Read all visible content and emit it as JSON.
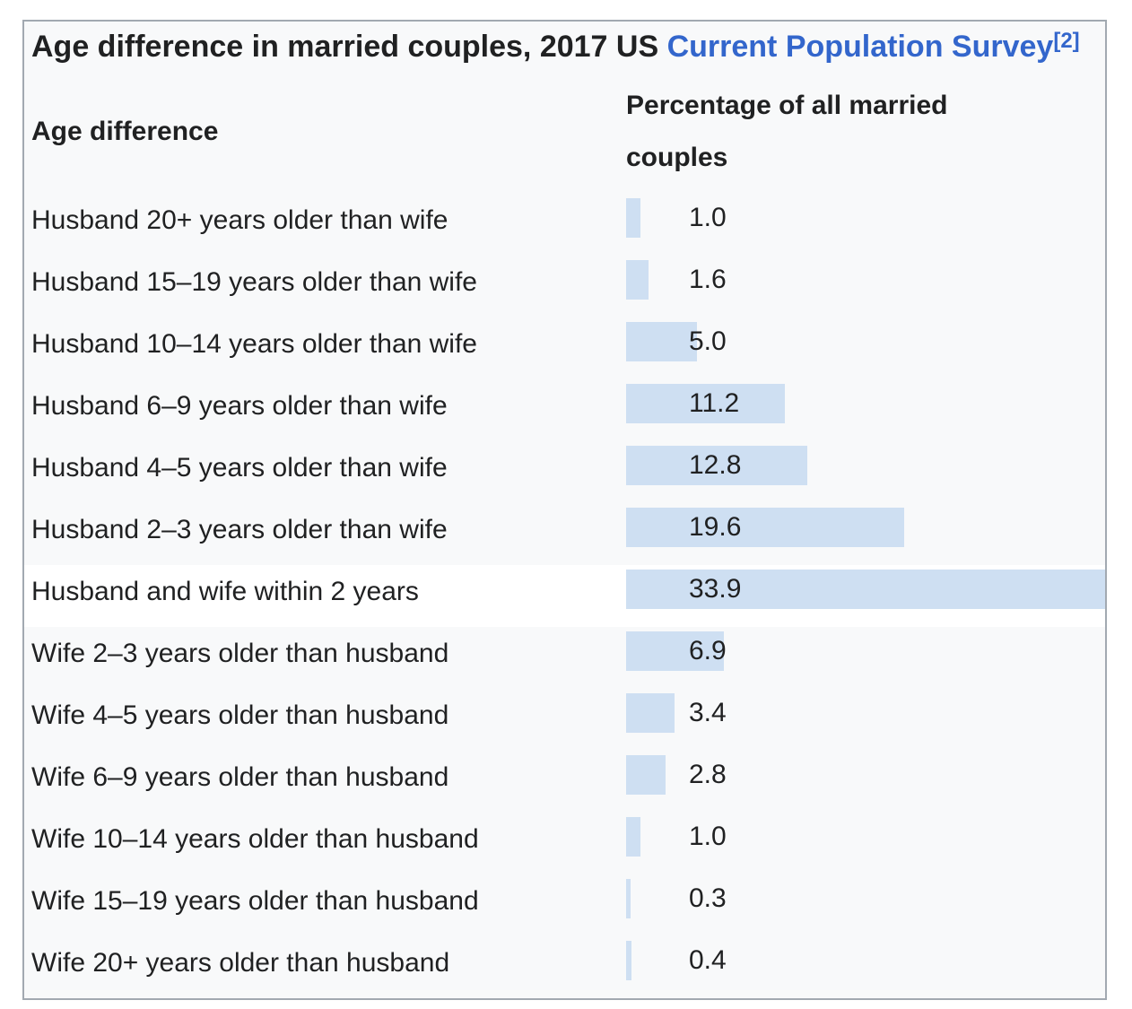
{
  "table": {
    "title": {
      "prefix": "Age difference in married couples, 2017 US ",
      "link_text": "Current Population Survey",
      "footnote": "[2]"
    },
    "headers": {
      "col1": "Age difference",
      "col2": "Percentage of all married couples"
    }
  },
  "chart_data": {
    "type": "bar",
    "orientation": "horizontal",
    "title": "Age difference in married couples, 2017 US Current Population Survey",
    "xlabel": "Age difference",
    "ylabel": "Percentage of all married couples",
    "xlim": [
      0,
      33.9
    ],
    "grid": false,
    "legend": false,
    "categories": [
      "Husband 20+ years older than wife",
      "Husband 15–19 years older than wife",
      "Husband 10–14 years older than wife",
      "Husband 6–9 years older than wife",
      "Husband 4–5 years older than wife",
      "Husband 2–3 years older than wife",
      "Husband and wife within 2 years",
      "Wife 2–3 years older than husband",
      "Wife 4–5 years older than husband",
      "Wife 6–9 years older than husband",
      "Wife 10–14 years older than husband",
      "Wife 15–19 years older than husband",
      "Wife 20+ years older than husband"
    ],
    "values": [
      1.0,
      1.6,
      5.0,
      11.2,
      12.8,
      19.6,
      33.9,
      6.9,
      3.4,
      2.8,
      1.0,
      0.3,
      0.4
    ],
    "value_labels": [
      "1.0",
      "1.6",
      "5.0",
      "11.2",
      "12.8",
      "19.6",
      "33.9",
      "6.9",
      "3.4",
      "2.8",
      "1.0",
      "0.3",
      "0.4"
    ],
    "highlighted_row_index": 6,
    "colors": {
      "bar": "#cedff2",
      "row_background": "#f8f9fa",
      "highlight_background": "#ffffff",
      "border": "#a2a9b1",
      "text": "#202122",
      "link": "#3366cc"
    }
  }
}
